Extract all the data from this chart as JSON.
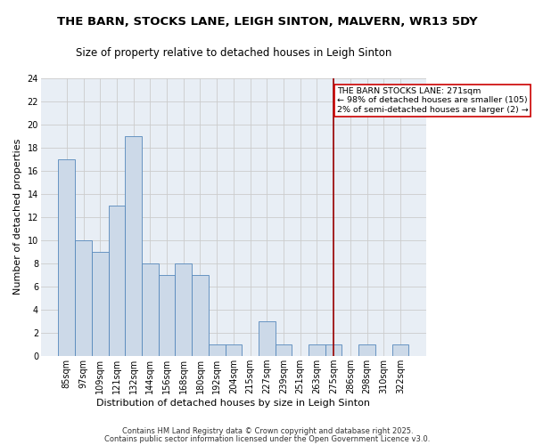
{
  "title": "THE BARN, STOCKS LANE, LEIGH SINTON, MALVERN, WR13 5DY",
  "subtitle": "Size of property relative to detached houses in Leigh Sinton",
  "xlabel": "Distribution of detached houses by size in Leigh Sinton",
  "ylabel": "Number of detached properties",
  "categories": [
    "85sqm",
    "97sqm",
    "109sqm",
    "121sqm",
    "132sqm",
    "144sqm",
    "156sqm",
    "168sqm",
    "180sqm",
    "192sqm",
    "204sqm",
    "215sqm",
    "227sqm",
    "239sqm",
    "251sqm",
    "263sqm",
    "275sqm",
    "286sqm",
    "298sqm",
    "310sqm",
    "322sqm"
  ],
  "values": [
    17,
    10,
    9,
    13,
    19,
    8,
    7,
    8,
    7,
    1,
    1,
    0,
    3,
    1,
    0,
    1,
    1,
    0,
    1,
    0,
    1
  ],
  "bar_color": "#ccd9e8",
  "bar_edge_color": "#5588bb",
  "vline_x": 16.0,
  "vline_color": "#990000",
  "annotation_text": "THE BARN STOCKS LANE: 271sqm\n← 98% of detached houses are smaller (105)\n2% of semi-detached houses are larger (2) →",
  "annotation_box_color": "#ffffff",
  "annotation_box_edge_color": "#cc0000",
  "ylim": [
    0,
    24
  ],
  "yticks": [
    0,
    2,
    4,
    6,
    8,
    10,
    12,
    14,
    16,
    18,
    20,
    22,
    24
  ],
  "grid_color": "#cccccc",
  "background_color": "#ffffff",
  "plot_bg_color": "#e8eef5",
  "footer1": "Contains HM Land Registry data © Crown copyright and database right 2025.",
  "footer2": "Contains public sector information licensed under the Open Government Licence v3.0.",
  "title_fontsize": 9.5,
  "subtitle_fontsize": 8.5,
  "axis_label_fontsize": 8,
  "tick_fontsize": 7,
  "annotation_fontsize": 6.8,
  "footer_fontsize": 6
}
